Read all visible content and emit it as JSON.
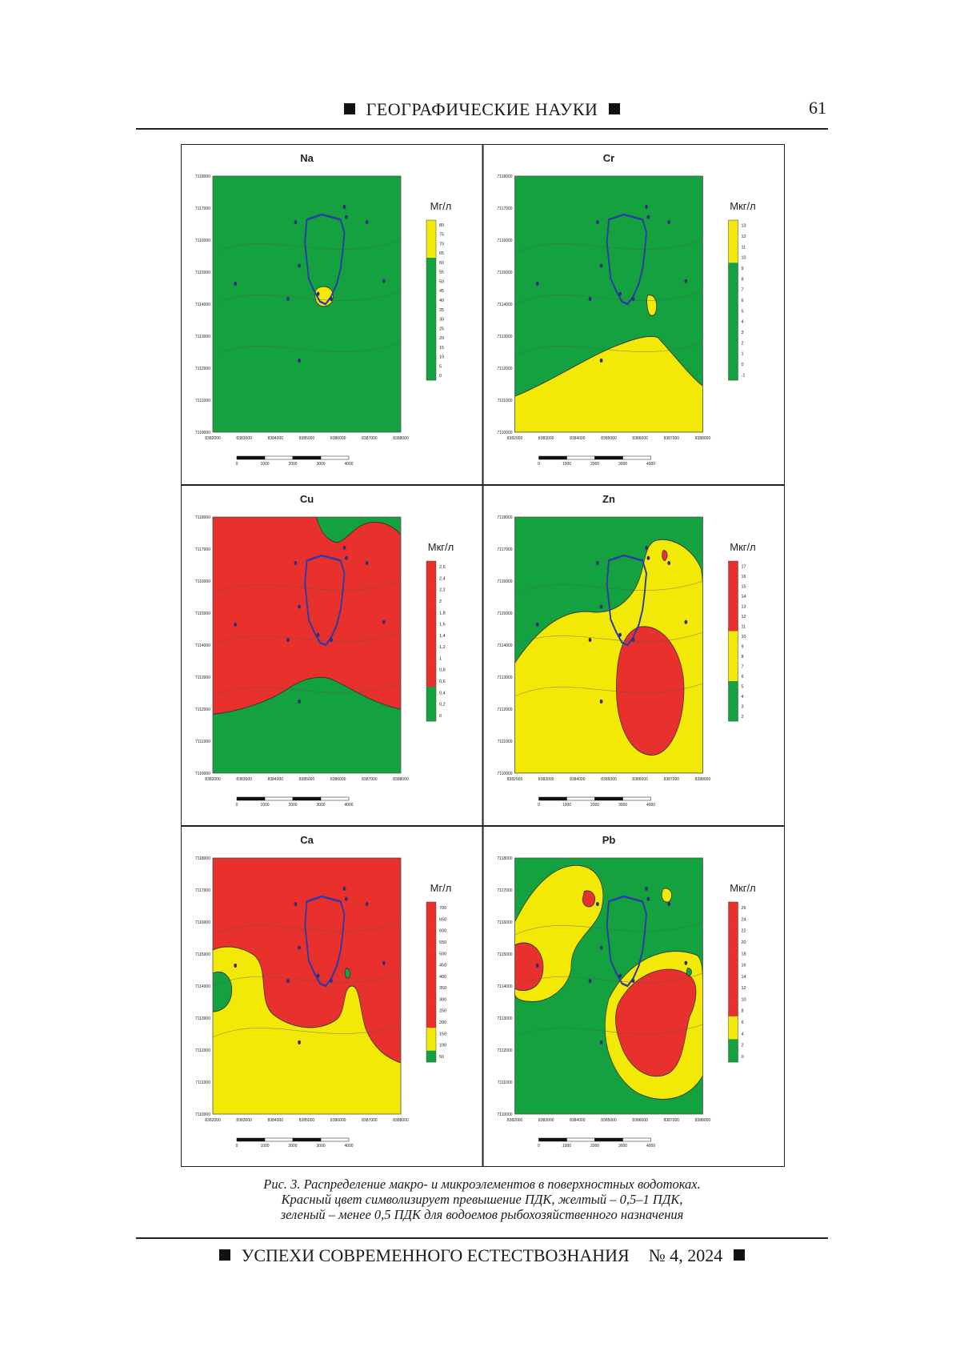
{
  "header": {
    "journal_section": "ГЕОГРАФИЧЕСКИЕ НАУКИ",
    "page_number": "61"
  },
  "figure": {
    "colors": {
      "red": "#e8302c",
      "yellow": "#f2ea06",
      "green": "#13a23f",
      "outline": "#2d3aa8"
    },
    "y_ticks": [
      "7118000",
      "7117000",
      "7116000",
      "7115000",
      "7114000",
      "7113000",
      "7112000",
      "7111000",
      "7110000"
    ],
    "x_ticks": [
      "8382000",
      "8383000",
      "8384000",
      "8385000",
      "8386000",
      "8387000",
      "8388000"
    ],
    "scale_ticks": [
      "0",
      "1000",
      "2000",
      "3000",
      "4000"
    ],
    "panels": [
      {
        "id": "na",
        "title": "Na",
        "unit": "Мг/л",
        "legend": [
          "80",
          "75",
          "70",
          "65",
          "60",
          "55",
          "50",
          "45",
          "40",
          "35",
          "30",
          "25",
          "20",
          "15",
          "10",
          "5",
          "0"
        ],
        "legend_colors": [
          "yellow",
          "yellow",
          "yellow",
          "yellow",
          "green",
          "green",
          "green",
          "green",
          "green",
          "green",
          "green",
          "green",
          "green",
          "green",
          "green",
          "green",
          "green"
        ]
      },
      {
        "id": "cr",
        "title": "Cr",
        "unit": "Мкг/л",
        "legend": [
          "13",
          "12",
          "11",
          "10",
          "9",
          "8",
          "7",
          "6",
          "5",
          "4",
          "3",
          "2",
          "1",
          "0",
          "-1"
        ],
        "legend_colors": [
          "yellow",
          "yellow",
          "yellow",
          "yellow",
          "green",
          "green",
          "green",
          "green",
          "green",
          "green",
          "green",
          "green",
          "green",
          "green",
          "green"
        ]
      },
      {
        "id": "cu",
        "title": "Cu",
        "unit": "Мкг/л",
        "legend": [
          "2,6",
          "2,4",
          "2,2",
          "2",
          "1,8",
          "1,6",
          "1,4",
          "1,2",
          "1",
          "0,8",
          "0,6",
          "0,4",
          "0,2",
          "0"
        ],
        "legend_colors": [
          "red",
          "red",
          "red",
          "red",
          "red",
          "red",
          "red",
          "red",
          "red",
          "red",
          "red",
          "green",
          "green",
          "green"
        ]
      },
      {
        "id": "zn",
        "title": "Zn",
        "unit": "Мкг/л",
        "legend": [
          "17",
          "16",
          "15",
          "14",
          "13",
          "12",
          "11",
          "10",
          "9",
          "8",
          "7",
          "6",
          "5",
          "4",
          "3",
          "2"
        ],
        "legend_colors": [
          "red",
          "red",
          "red",
          "red",
          "red",
          "red",
          "red",
          "yellow",
          "yellow",
          "yellow",
          "yellow",
          "yellow",
          "green",
          "green",
          "green",
          "green"
        ]
      },
      {
        "id": "ca",
        "title": "Ca",
        "unit": "Мг/л",
        "legend": [
          "700",
          "650",
          "600",
          "550",
          "500",
          "450",
          "400",
          "350",
          "300",
          "250",
          "200",
          "150",
          "100",
          "50"
        ],
        "legend_colors": [
          "red",
          "red",
          "red",
          "red",
          "red",
          "red",
          "red",
          "red",
          "red",
          "red",
          "red",
          "yellow",
          "yellow",
          "green"
        ]
      },
      {
        "id": "pb",
        "title": "Pb",
        "unit": "Мкг/л",
        "legend": [
          "26",
          "24",
          "22",
          "20",
          "18",
          "16",
          "14",
          "12",
          "10",
          "8",
          "6",
          "4",
          "2",
          "0"
        ],
        "legend_colors": [
          "red",
          "red",
          "red",
          "red",
          "red",
          "red",
          "red",
          "red",
          "red",
          "red",
          "yellow",
          "yellow",
          "green",
          "green"
        ]
      }
    ]
  },
  "caption": {
    "line1": "Рис. 3. Распределение макро- и микроэлементов в поверхностных водотоках.",
    "line2": "Красный цвет символизирует превышение ПДК, желтый – 0,5–1 ПДК,",
    "line3": "зеленый – менее 0,5 ПДК для водоемов рыбохозяйственного назначения"
  },
  "footer": {
    "journal": "УСПЕХИ СОВРЕМЕННОГО ЕСТЕСТВОЗНАНИЯ",
    "issue": "№ 4, 2024"
  }
}
